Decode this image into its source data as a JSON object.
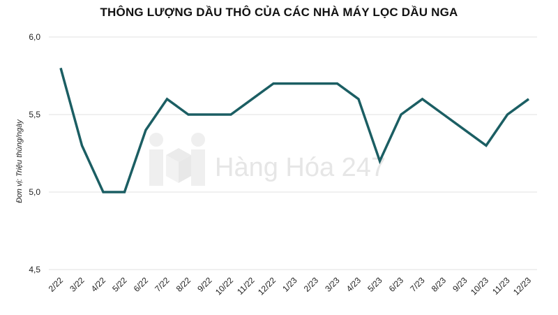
{
  "chart_data": {
    "type": "line",
    "title": "THÔNG LƯỢNG DẦU THÔ CỦA CÁC NHÀ MÁY LỌC DẦU NGA",
    "ylabel": "Đơn vị: Triệu thùng/ngày",
    "xlabel": "",
    "categories": [
      "2/22",
      "3/22",
      "4/22",
      "5/22",
      "6/22",
      "7/22",
      "8/22",
      "9/22",
      "10/22",
      "11/22",
      "12/22",
      "1/23",
      "2/23",
      "3/23",
      "4/23",
      "5/23",
      "6/23",
      "7/23",
      "8/23",
      "9/23",
      "10/23",
      "11/23",
      "12/23"
    ],
    "values": [
      5.8,
      5.3,
      5.0,
      5.0,
      5.4,
      5.6,
      5.5,
      5.5,
      5.5,
      5.6,
      5.7,
      5.7,
      5.7,
      5.7,
      5.6,
      5.2,
      5.5,
      5.6,
      5.5,
      5.4,
      5.3,
      5.5,
      5.6
    ],
    "ylim": [
      4.5,
      6.0
    ],
    "yticks": [
      "4,5",
      "5,0",
      "5,5",
      "6,0"
    ],
    "ytick_values": [
      4.5,
      5.0,
      5.5,
      6.0
    ],
    "grid": true,
    "line_color": "#1b5e63"
  },
  "watermark": {
    "text": "Hàng Hóa 247",
    "icon": "hanghoa-logo-icon"
  }
}
